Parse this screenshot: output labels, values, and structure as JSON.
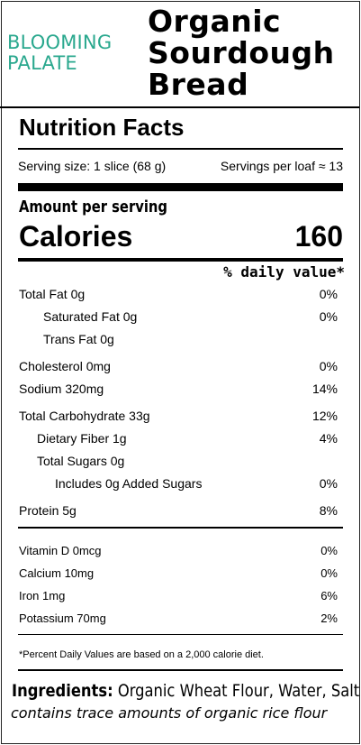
{
  "brand": {
    "line1": "BLOOMING",
    "line2": "PALATE"
  },
  "product": {
    "title_line1": "Organic",
    "title_line2": "Sourdough",
    "title_line3": "Bread"
  },
  "label": {
    "heading": "Nutrition Facts",
    "serving_size": "Serving size: 1 slice (68 g)",
    "servings_per": "Servings per loaf ≈ 13",
    "amount_per_serving": "Amount per serving",
    "calories_label": "Calories",
    "calories_value": "160",
    "daily_value_header": "% daily value*",
    "nutrients": [
      {
        "label": "Total Fat 0g",
        "dv": "0%"
      },
      {
        "label": "Saturated Fat 0g",
        "dv": "0%"
      },
      {
        "label": "Trans Fat 0g",
        "dv": ""
      },
      {
        "label": "Cholesterol 0mg",
        "dv": "0%"
      },
      {
        "label": "Sodium 320mg",
        "dv": "14%"
      },
      {
        "label": "Total Carbohydrate 33g",
        "dv": "12%"
      },
      {
        "label": "Dietary Fiber 1g",
        "dv": "4%"
      },
      {
        "label": "Total Sugars 0g",
        "dv": ""
      },
      {
        "label": "Includes 0g Added Sugars",
        "dv": "0%"
      },
      {
        "label": "Protein 5g",
        "dv": "8%"
      }
    ],
    "vitamins": [
      {
        "label": "Vitamin D 0mcg",
        "dv": "0%"
      },
      {
        "label": "Calcium 10mg",
        "dv": "0%"
      },
      {
        "label": "Iron 1mg",
        "dv": "6%"
      },
      {
        "label": "Potassium 70mg",
        "dv": "2%"
      }
    ],
    "footnote": "*Percent Daily Values are based on a 2,000 calorie diet."
  },
  "ingredients": {
    "heading": "Ingredients:",
    "list": "Organic Wheat Flour, Water, Salt",
    "trace_note": "contains trace amounts of organic rice flour"
  },
  "colors": {
    "brand": "#2aa88e"
  }
}
